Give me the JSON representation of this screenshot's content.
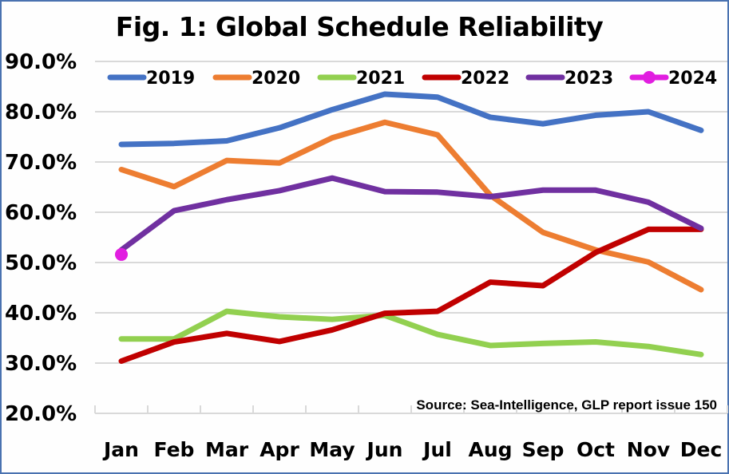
{
  "chart_data": {
    "type": "line",
    "title": "Fig. 1: Global Schedule Reliability",
    "xlabel": "",
    "ylabel": "",
    "categories": [
      "Jan",
      "Feb",
      "Mar",
      "Apr",
      "May",
      "Jun",
      "Jul",
      "Aug",
      "Sep",
      "Oct",
      "Nov",
      "Dec"
    ],
    "ylim": [
      20,
      90
    ],
    "yticks": [
      90,
      80,
      70,
      60,
      50,
      40,
      30,
      20
    ],
    "ytick_labels": [
      "90.0%",
      "80.0%",
      "70.0%",
      "60.0%",
      "50.0%",
      "40.0%",
      "30.0%",
      "20.0%"
    ],
    "grid": true,
    "legend_position": "top",
    "annotation": "Source: Sea-Intelligence, GLP report issue 150",
    "series": [
      {
        "name": "2019",
        "color": "#4472c4",
        "marker": false,
        "values": [
          73.5,
          73.7,
          74.2,
          76.8,
          80.4,
          83.5,
          82.9,
          78.9,
          77.6,
          79.3,
          80.0,
          76.3
        ]
      },
      {
        "name": "2020",
        "color": "#ed7d31",
        "marker": false,
        "values": [
          68.5,
          65.1,
          70.3,
          69.8,
          74.8,
          77.9,
          75.4,
          63.4,
          56.0,
          52.5,
          50.1,
          44.6
        ]
      },
      {
        "name": "2021",
        "color": "#92d050",
        "marker": false,
        "values": [
          34.8,
          34.8,
          40.3,
          39.2,
          38.7,
          39.5,
          35.7,
          33.5,
          33.9,
          34.2,
          33.3,
          31.7
        ]
      },
      {
        "name": "2022",
        "color": "#c00000",
        "marker": false,
        "values": [
          30.4,
          34.2,
          35.9,
          34.3,
          36.6,
          39.9,
          40.3,
          46.1,
          45.4,
          52.0,
          56.6,
          56.6
        ]
      },
      {
        "name": "2023",
        "color": "#7030a0",
        "marker": false,
        "values": [
          52.5,
          60.3,
          62.5,
          64.3,
          66.8,
          64.1,
          64.0,
          63.1,
          64.4,
          64.4,
          62.0,
          56.8
        ]
      },
      {
        "name": "2024",
        "color": "#e11ee0",
        "marker": true,
        "values": [
          51.6,
          null,
          null,
          null,
          null,
          null,
          null,
          null,
          null,
          null,
          null,
          null
        ]
      }
    ]
  }
}
